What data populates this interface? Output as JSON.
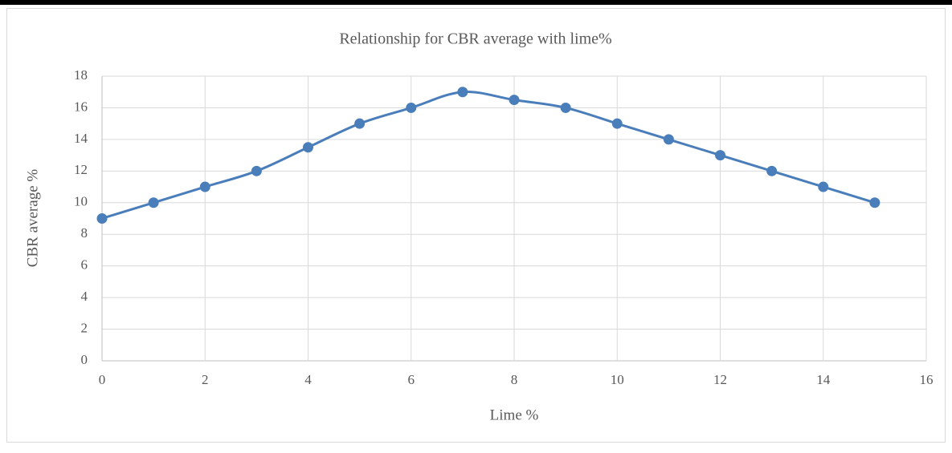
{
  "chart_data": {
    "type": "scatter",
    "title": "Relationship for CBR average with lime%",
    "x_label": "Lime %",
    "y_label": "CBR average %",
    "x": [
      0,
      1,
      2,
      3,
      4,
      5,
      6,
      7,
      8,
      9,
      10,
      11,
      12,
      13,
      14,
      15
    ],
    "series": [
      {
        "name": "CBR average",
        "color": "#4a7ebb",
        "values": [
          9,
          10,
          11,
          12,
          13.5,
          15,
          16,
          17,
          16.5,
          16,
          15,
          14,
          13,
          12,
          11,
          10
        ]
      }
    ],
    "xlim": [
      0,
      16
    ],
    "xticks": [
      0,
      2,
      4,
      6,
      8,
      10,
      12,
      14,
      16
    ],
    "ylim": [
      0,
      18
    ],
    "yticks": [
      0,
      2,
      4,
      6,
      8,
      10,
      12,
      14,
      16,
      18
    ],
    "grid": true,
    "smooth": true,
    "markers": true
  }
}
